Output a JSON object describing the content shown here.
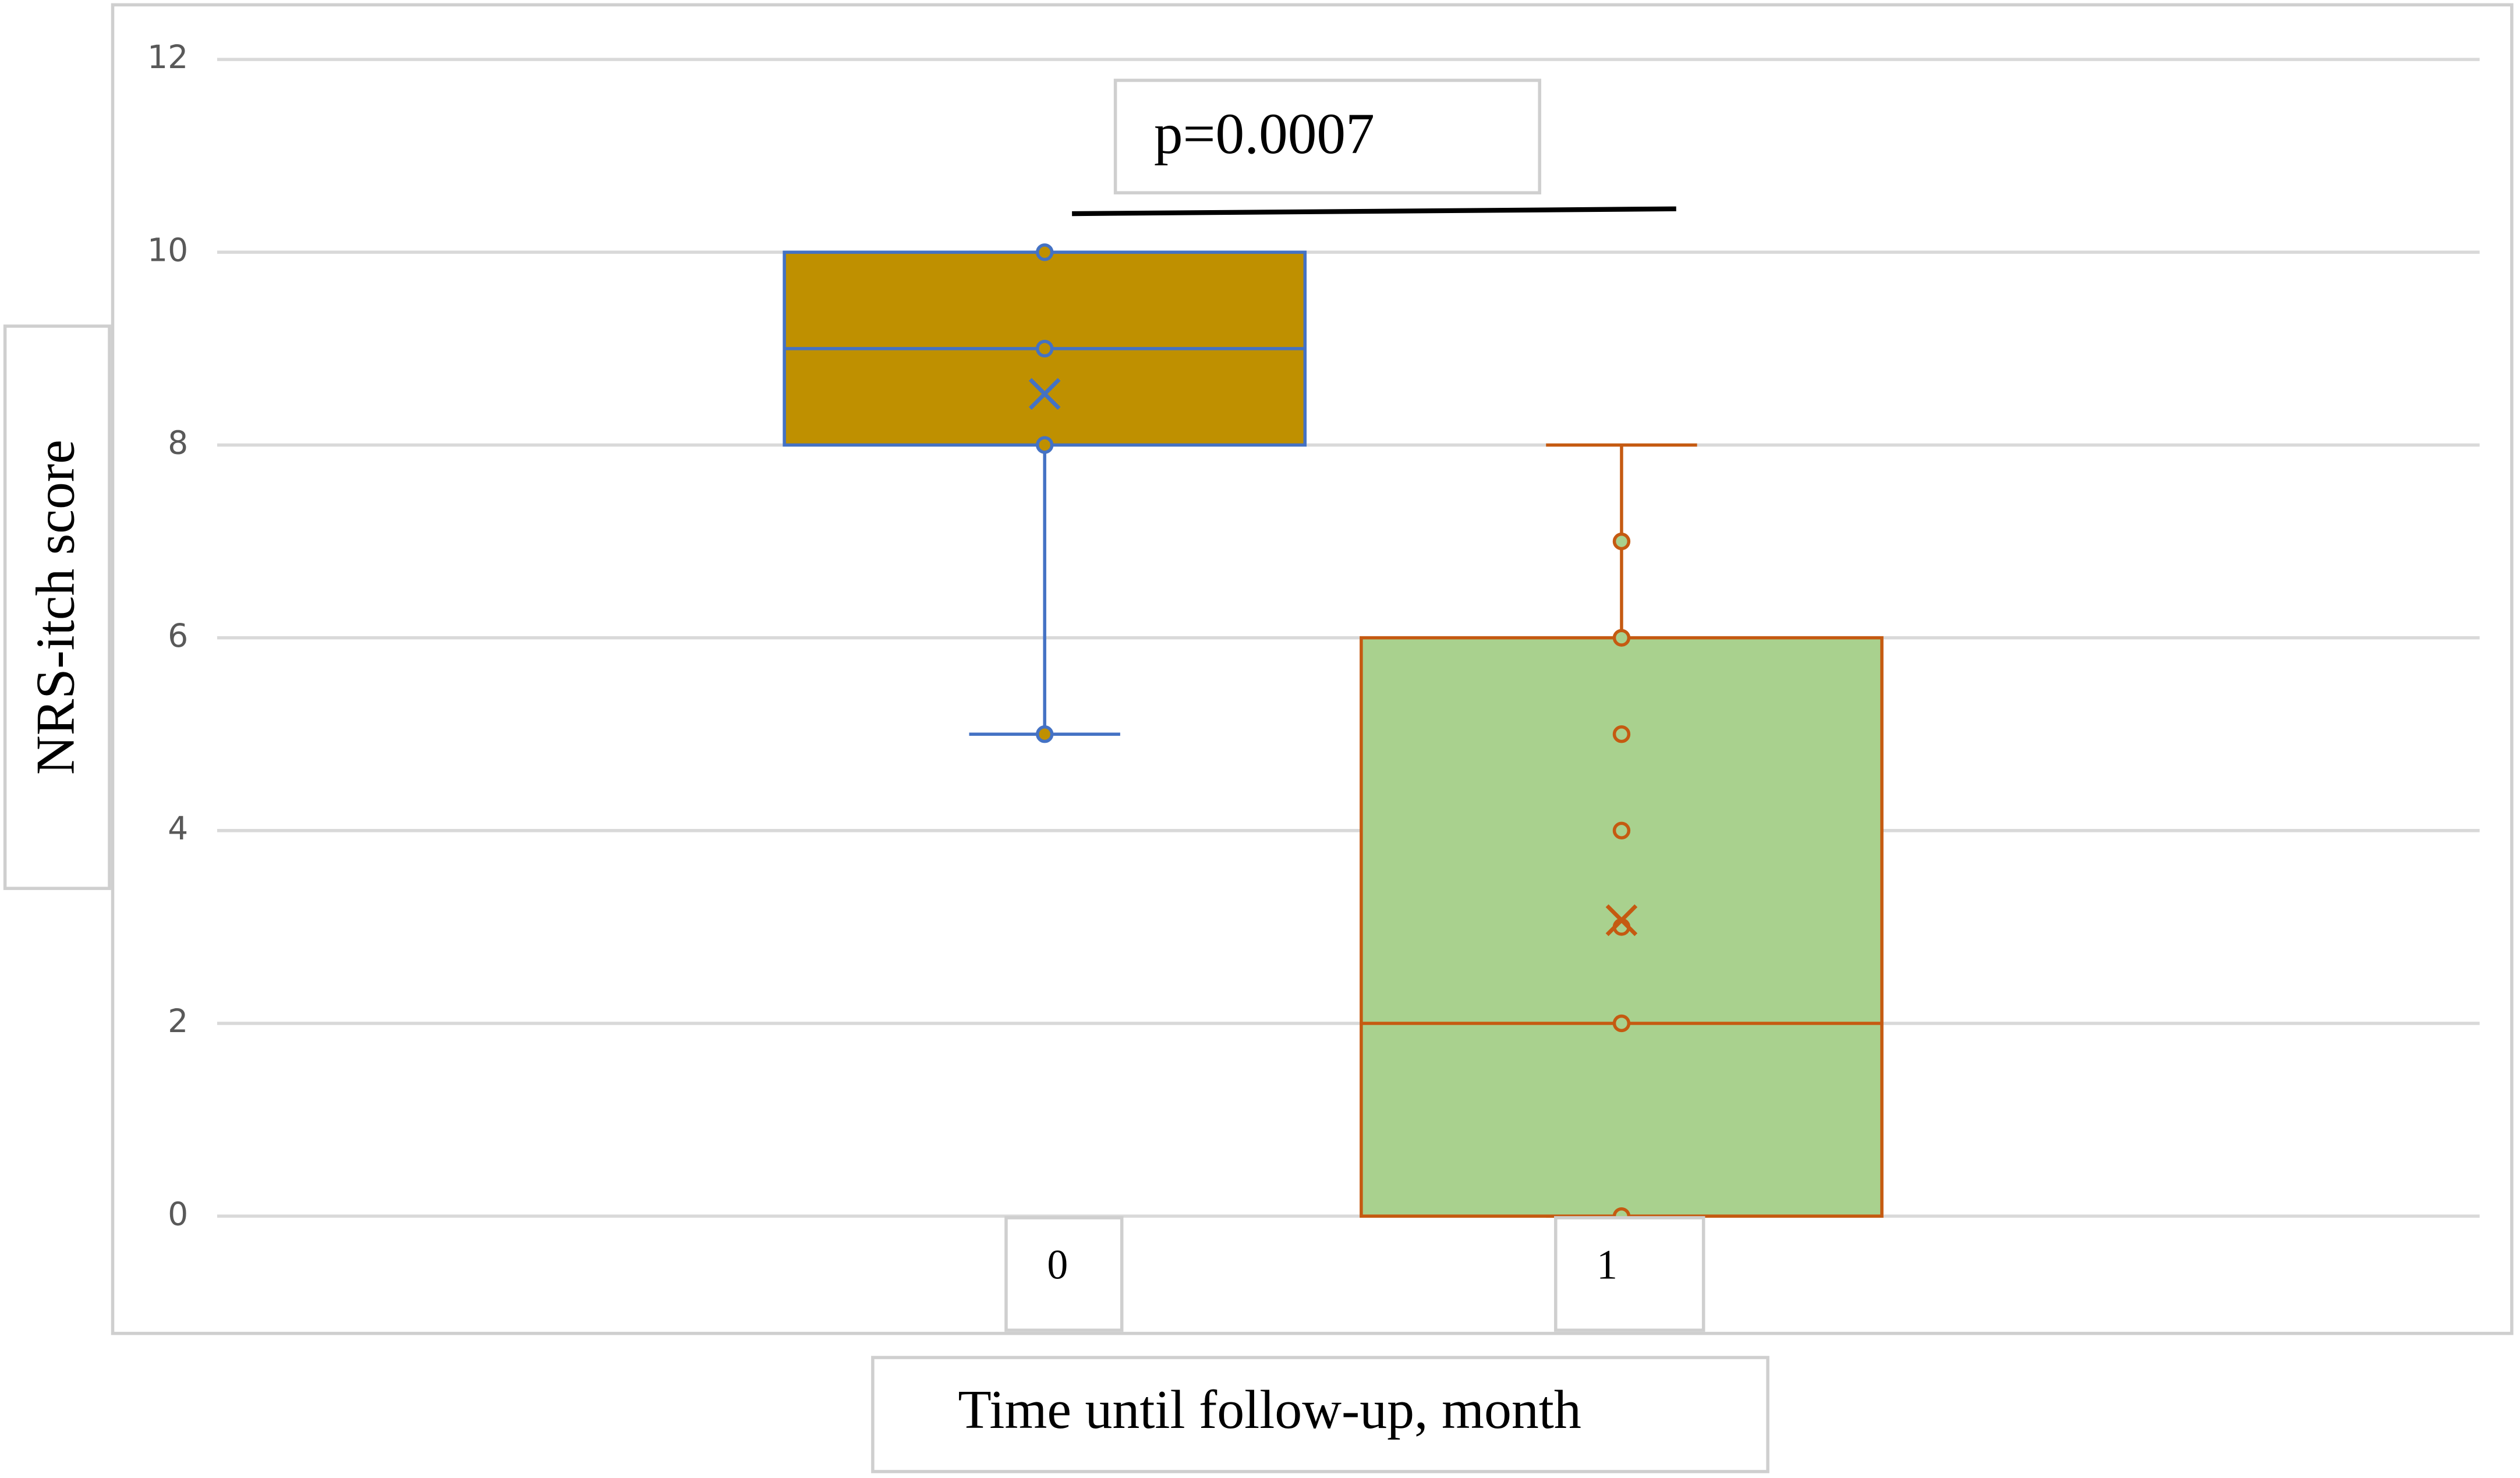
{
  "chart_data": {
    "type": "box",
    "y_label": "NRS-itch score",
    "x_label": "Time until follow-up, month",
    "annotation": "p=0.0007",
    "categories": [
      "0",
      "1"
    ],
    "series": [
      {
        "color": "#bf9000",
        "edge_color": "#4472c4",
        "min": 5,
        "q1": 8,
        "median": 9,
        "q3": 10,
        "max": 10,
        "mean": 8.53,
        "points": [
          10,
          9,
          8,
          5
        ]
      },
      {
        "color": "#a9d18e",
        "edge_color": "#c55a11",
        "min": 0,
        "q1": 0,
        "median": 2,
        "q3": 6,
        "max": 8,
        "mean": 3.07,
        "points": [
          7,
          6,
          5,
          4,
          3,
          2,
          0
        ]
      }
    ],
    "ylim": [
      0,
      12
    ],
    "yticks": [
      0,
      2,
      4,
      6,
      8,
      10,
      12
    ],
    "grid": true
  }
}
